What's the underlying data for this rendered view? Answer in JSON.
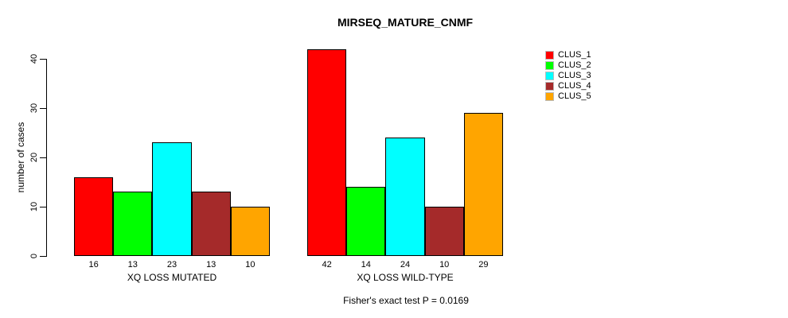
{
  "chart_data": {
    "type": "bar",
    "title": "MIRSEQ_MATURE_CNMF",
    "ylabel": "number of cases",
    "xlabel": "",
    "categories": [
      "XQ LOSS MUTATED",
      "XQ LOSS WILD-TYPE"
    ],
    "series": [
      {
        "name": "CLUS_1",
        "color": "#FF0000",
        "values": [
          16,
          42
        ]
      },
      {
        "name": "CLUS_2",
        "color": "#00FF00",
        "values": [
          13,
          14
        ]
      },
      {
        "name": "CLUS_3",
        "color": "#00FFFF",
        "values": [
          23,
          24
        ]
      },
      {
        "name": "CLUS_4",
        "color": "#A52A2A",
        "values": [
          13,
          10
        ]
      },
      {
        "name": "CLUS_5",
        "color": "#FFA500",
        "values": [
          10,
          29
        ]
      }
    ],
    "yticks": [
      0,
      10,
      20,
      30,
      40
    ],
    "ylim": [
      0,
      40
    ],
    "grid": false,
    "bar_value_labels_shown": true,
    "legend_position": "right",
    "annotation": "Fisher's exact test P = 0.0169"
  },
  "colors": {
    "background": "#FFFFFF",
    "axis": "#000000",
    "text": "#000000",
    "bar_border": "#000000"
  }
}
